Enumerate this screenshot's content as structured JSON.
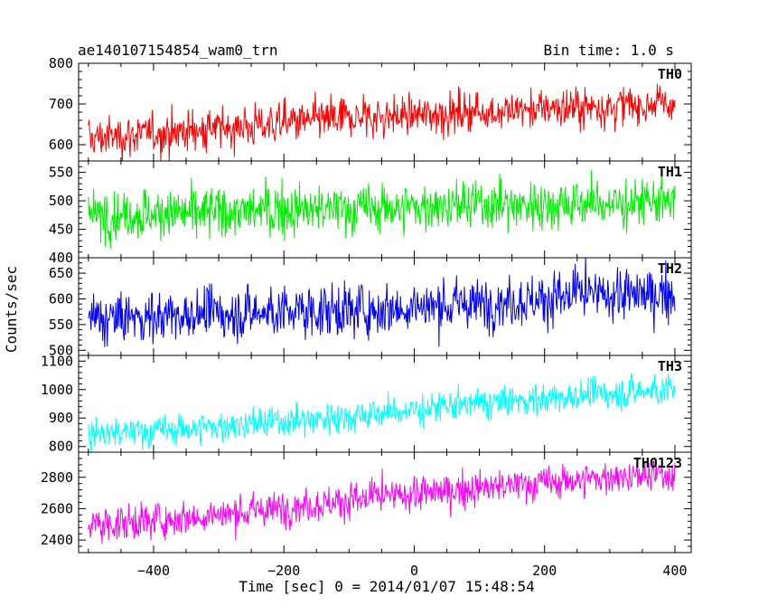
{
  "chart_data": {
    "type": "line",
    "title_left": "ae140107154854_wam0_trn",
    "title_right": "Bin time: 1.0 s",
    "xlabel": "Time [sec] 0 = 2014/01/07 15:48:54",
    "ylabel": "Counts/sec",
    "xlim": [
      -515,
      425
    ],
    "x_ticks": [
      -400,
      -200,
      0,
      200,
      400
    ],
    "x_tick_labels": [
      "−400",
      "−200",
      "0",
      "200",
      "400"
    ],
    "x_start": -500,
    "x_end": 400,
    "bin_time": 1.0,
    "panels": [
      {
        "name": "TH0",
        "color": "#ff0000",
        "ylim": [
          560,
          800
        ],
        "y_ticks": [
          600,
          700,
          800
        ],
        "trend": [
          [
            -500,
            615
          ],
          [
            -300,
            640
          ],
          [
            -100,
            665
          ],
          [
            100,
            680
          ],
          [
            300,
            695
          ],
          [
            400,
            700
          ]
        ],
        "noise": 25
      },
      {
        "name": "TH1",
        "color": "#00ee00",
        "ylim": [
          400,
          570
        ],
        "y_ticks": [
          400,
          450,
          500,
          550
        ],
        "trend": [
          [
            -500,
            475
          ],
          [
            -200,
            483
          ],
          [
            100,
            492
          ],
          [
            400,
            497
          ]
        ],
        "noise": 22
      },
      {
        "name": "TH2",
        "color": "#0000ff",
        "ylim": [
          490,
          680
        ],
        "y_ticks": [
          500,
          550,
          600,
          650
        ],
        "trend": [
          [
            -500,
            560
          ],
          [
            -300,
            570
          ],
          [
            -100,
            578
          ],
          [
            100,
            590
          ],
          [
            250,
            605
          ],
          [
            400,
            610
          ]
        ],
        "noise": 25
      },
      {
        "name": "TH3",
        "color": "#00ffff",
        "ylim": [
          780,
          1120
        ],
        "y_ticks": [
          800,
          900,
          1000,
          1100
        ],
        "trend": [
          [
            -500,
            840
          ],
          [
            -300,
            870
          ],
          [
            -100,
            905
          ],
          [
            100,
            950
          ],
          [
            300,
            985
          ],
          [
            400,
            1000
          ]
        ],
        "noise": 28
      },
      {
        "name": "TH0123",
        "color": "#ff00ff",
        "ylim": [
          2320,
          2960
        ],
        "y_ticks": [
          2400,
          2600,
          2800
        ],
        "trend": [
          [
            -500,
            2490
          ],
          [
            -300,
            2560
          ],
          [
            -100,
            2650
          ],
          [
            100,
            2730
          ],
          [
            300,
            2800
          ],
          [
            400,
            2815
          ]
        ],
        "noise": 55
      }
    ]
  }
}
